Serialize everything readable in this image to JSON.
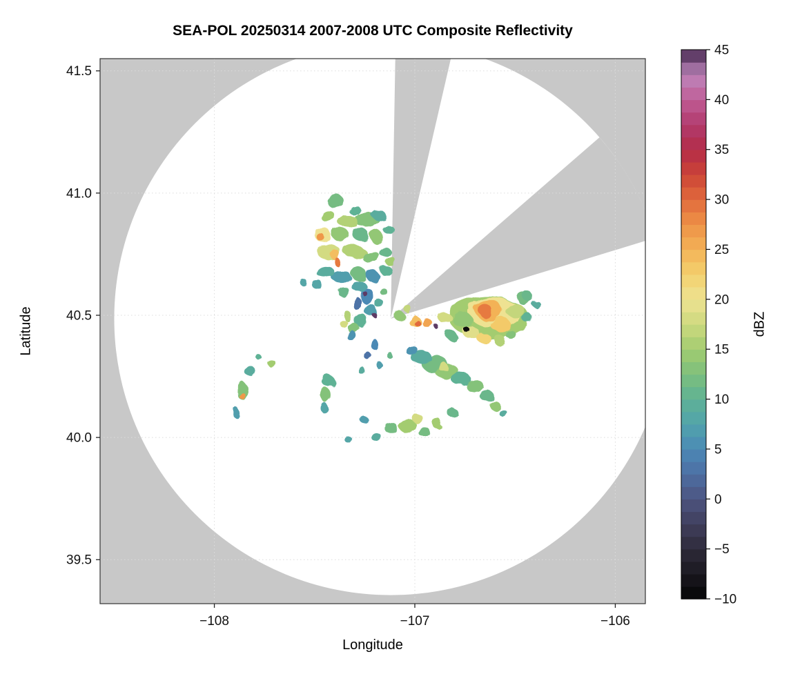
{
  "chart_data": {
    "type": "heatmap",
    "title": "SEA-POL 20250314 2007-2008 UTC Composite Reflectivity",
    "xlabel": "Longitude",
    "ylabel": "Latitude",
    "xlim": [
      -108.57,
      -105.85
    ],
    "ylim": [
      39.32,
      41.55
    ],
    "xticks": [
      -108,
      -107,
      -106
    ],
    "xtick_labels": [
      "−108",
      "−107",
      "−106"
    ],
    "yticks": [
      39.5,
      40.0,
      40.5,
      41.0,
      41.5
    ],
    "ytick_labels": [
      "39.5",
      "40.0",
      "40.5",
      "41.0",
      "41.5"
    ],
    "grid": true,
    "grid_color": "#dcdcdc",
    "outside_color": "#c8c8c8",
    "coverage_fill": "#ffffff",
    "radar": {
      "center_lon": -107.12,
      "center_lat": 40.486,
      "radius_lat_deg": 1.131
    },
    "blocked_sectors_az_from_north": [
      {
        "start_az": 1,
        "end_az": 13
      },
      {
        "start_az": 49,
        "end_az": 73
      }
    ],
    "colorbar": {
      "label": "dBZ",
      "min": -10,
      "max": 45,
      "ticks": [
        -10,
        -5,
        0,
        5,
        10,
        15,
        20,
        25,
        30,
        35,
        40,
        45
      ],
      "tick_labels": [
        "−10",
        "−5",
        "0",
        "5",
        "10",
        "15",
        "20",
        "25",
        "30",
        "35",
        "40",
        "45"
      ],
      "orientation": "vertical",
      "position": "right"
    },
    "colormap_stops": [
      [
        -10,
        "#050505"
      ],
      [
        -7.5,
        "#1a181f"
      ],
      [
        -5,
        "#2e2b3a"
      ],
      [
        -2.5,
        "#403f5c"
      ],
      [
        0,
        "#4d5480"
      ],
      [
        2.5,
        "#4d6ea3"
      ],
      [
        5,
        "#4b89b5"
      ],
      [
        7.5,
        "#52a3ab"
      ],
      [
        10,
        "#5fb295"
      ],
      [
        12.5,
        "#7cbf7d"
      ],
      [
        15,
        "#a3cc70"
      ],
      [
        17.5,
        "#ccd97e"
      ],
      [
        20,
        "#eee292"
      ],
      [
        22.5,
        "#f3d06e"
      ],
      [
        25,
        "#f3b257"
      ],
      [
        27.5,
        "#ee9247"
      ],
      [
        30,
        "#e16a3c"
      ],
      [
        32.5,
        "#cc4437"
      ],
      [
        35,
        "#b42c48"
      ],
      [
        37.5,
        "#b13a6d"
      ],
      [
        40,
        "#c05d95"
      ],
      [
        42.5,
        "#bd85bb"
      ],
      [
        45,
        "#45274f"
      ]
    ],
    "echo_columns": [
      "lon",
      "lat",
      "width_deg",
      "height_deg",
      "dbz"
    ],
    "echoes": [
      [
        -107.4,
        40.97,
        0.09,
        0.05,
        12
      ],
      [
        -107.44,
        40.91,
        0.07,
        0.05,
        15
      ],
      [
        -107.3,
        40.93,
        0.06,
        0.04,
        10
      ],
      [
        -107.24,
        40.89,
        0.12,
        0.06,
        13
      ],
      [
        -107.18,
        40.91,
        0.07,
        0.04,
        9
      ],
      [
        -107.33,
        40.88,
        0.1,
        0.05,
        16
      ],
      [
        -107.46,
        40.83,
        0.08,
        0.06,
        20
      ],
      [
        -107.47,
        40.82,
        0.04,
        0.03,
        27
      ],
      [
        -107.37,
        40.83,
        0.09,
        0.05,
        14
      ],
      [
        -107.27,
        40.83,
        0.08,
        0.05,
        11
      ],
      [
        -107.19,
        40.82,
        0.07,
        0.05,
        14
      ],
      [
        -107.13,
        40.85,
        0.05,
        0.04,
        10
      ],
      [
        -107.43,
        40.76,
        0.12,
        0.06,
        18
      ],
      [
        -107.4,
        40.75,
        0.05,
        0.04,
        24
      ],
      [
        -107.39,
        40.72,
        0.035,
        0.03,
        29
      ],
      [
        -107.3,
        40.76,
        0.11,
        0.05,
        16
      ],
      [
        -107.22,
        40.74,
        0.09,
        0.05,
        13
      ],
      [
        -107.15,
        40.76,
        0.06,
        0.04,
        11
      ],
      [
        -107.45,
        40.68,
        0.09,
        0.05,
        9
      ],
      [
        -107.37,
        40.66,
        0.1,
        0.05,
        7
      ],
      [
        -107.28,
        40.67,
        0.08,
        0.05,
        12
      ],
      [
        -107.21,
        40.66,
        0.07,
        0.04,
        6
      ],
      [
        -107.14,
        40.68,
        0.06,
        0.04,
        10
      ],
      [
        -107.12,
        40.72,
        0.05,
        0.04,
        15
      ],
      [
        -107.48,
        40.62,
        0.05,
        0.04,
        8
      ],
      [
        -107.36,
        40.6,
        0.06,
        0.04,
        11
      ],
      [
        -107.28,
        40.62,
        0.07,
        0.05,
        8
      ],
      [
        -107.24,
        40.58,
        0.06,
        0.07,
        5
      ],
      [
        -107.29,
        40.55,
        0.05,
        0.05,
        3
      ],
      [
        -107.22,
        40.52,
        0.06,
        0.05,
        7
      ],
      [
        -107.27,
        40.48,
        0.07,
        0.05,
        10
      ],
      [
        -107.31,
        40.45,
        0.06,
        0.04,
        13
      ],
      [
        -107.34,
        40.5,
        0.04,
        0.04,
        16
      ],
      [
        -107.25,
        40.59,
        0.022,
        0.02,
        44.5
      ],
      [
        -107.2,
        40.5,
        0.02,
        0.02,
        44.5
      ],
      [
        -107.32,
        40.42,
        0.05,
        0.04,
        6
      ],
      [
        -107.36,
        40.47,
        0.04,
        0.03,
        18
      ],
      [
        -107.18,
        40.55,
        0.04,
        0.04,
        9
      ],
      [
        -107.16,
        40.6,
        0.035,
        0.03,
        12
      ],
      [
        -107.08,
        40.5,
        0.05,
        0.04,
        14
      ],
      [
        -107.04,
        40.53,
        0.04,
        0.03,
        17
      ],
      [
        -107.0,
        40.475,
        0.06,
        0.045,
        24
      ],
      [
        -106.99,
        40.47,
        0.03,
        0.025,
        30
      ],
      [
        -106.94,
        40.47,
        0.05,
        0.035,
        26
      ],
      [
        -106.9,
        40.46,
        0.02,
        0.02,
        44.5
      ],
      [
        -106.85,
        40.49,
        0.07,
        0.04,
        18
      ],
      [
        -106.63,
        40.49,
        0.4,
        0.17,
        15
      ],
      [
        -106.6,
        40.51,
        0.26,
        0.12,
        20
      ],
      [
        -106.63,
        40.52,
        0.14,
        0.08,
        25
      ],
      [
        -106.65,
        40.52,
        0.07,
        0.05,
        29
      ],
      [
        -106.57,
        40.46,
        0.1,
        0.06,
        23
      ],
      [
        -106.5,
        40.52,
        0.09,
        0.06,
        17
      ],
      [
        -106.46,
        40.57,
        0.06,
        0.05,
        12
      ],
      [
        -106.44,
        40.49,
        0.05,
        0.04,
        10
      ],
      [
        -106.76,
        40.48,
        0.1,
        0.06,
        14
      ],
      [
        -106.72,
        40.43,
        0.08,
        0.05,
        19
      ],
      [
        -106.66,
        40.41,
        0.07,
        0.04,
        22
      ],
      [
        -106.58,
        40.4,
        0.06,
        0.04,
        16
      ],
      [
        -106.74,
        40.44,
        0.025,
        0.025,
        -9
      ],
      [
        -106.82,
        40.42,
        0.05,
        0.04,
        11
      ],
      [
        -106.52,
        40.42,
        0.05,
        0.035,
        13
      ],
      [
        -107.02,
        40.36,
        0.06,
        0.04,
        6
      ],
      [
        -106.97,
        40.33,
        0.1,
        0.06,
        9
      ],
      [
        -106.9,
        40.3,
        0.13,
        0.07,
        12
      ],
      [
        -106.86,
        40.29,
        0.05,
        0.035,
        18
      ],
      [
        -106.84,
        40.27,
        0.12,
        0.06,
        14
      ],
      [
        -106.77,
        40.24,
        0.1,
        0.05,
        10
      ],
      [
        -106.7,
        40.21,
        0.09,
        0.05,
        13
      ],
      [
        -106.64,
        40.17,
        0.07,
        0.045,
        11
      ],
      [
        -106.6,
        40.13,
        0.05,
        0.04,
        14
      ],
      [
        -106.56,
        40.1,
        0.04,
        0.03,
        9
      ],
      [
        -107.43,
        40.23,
        0.06,
        0.05,
        10
      ],
      [
        -107.44,
        40.17,
        0.05,
        0.06,
        13
      ],
      [
        -107.45,
        40.12,
        0.04,
        0.04,
        8
      ],
      [
        -107.12,
        40.04,
        0.06,
        0.05,
        12
      ],
      [
        -107.04,
        40.05,
        0.09,
        0.055,
        15
      ],
      [
        -106.99,
        40.08,
        0.05,
        0.04,
        18
      ],
      [
        -106.95,
        40.02,
        0.06,
        0.04,
        12
      ],
      [
        -106.88,
        40.05,
        0.05,
        0.04,
        15
      ],
      [
        -106.81,
        40.1,
        0.05,
        0.04,
        11
      ],
      [
        -107.19,
        40.0,
        0.05,
        0.035,
        9
      ],
      [
        -107.33,
        39.99,
        0.035,
        0.03,
        8
      ],
      [
        -107.25,
        40.07,
        0.04,
        0.03,
        7
      ],
      [
        -107.2,
        40.38,
        0.035,
        0.045,
        5
      ],
      [
        -107.23,
        40.33,
        0.03,
        0.035,
        3
      ],
      [
        -107.17,
        40.29,
        0.03,
        0.03,
        7
      ],
      [
        -107.26,
        40.27,
        0.035,
        0.03,
        9
      ],
      [
        -107.13,
        40.34,
        0.03,
        0.025,
        11
      ],
      [
        -107.82,
        40.27,
        0.05,
        0.045,
        9
      ],
      [
        -107.86,
        40.19,
        0.05,
        0.075,
        13
      ],
      [
        -107.86,
        40.17,
        0.028,
        0.03,
        27
      ],
      [
        -107.89,
        40.1,
        0.04,
        0.04,
        7
      ],
      [
        -107.71,
        40.3,
        0.045,
        0.025,
        15
      ],
      [
        -107.78,
        40.33,
        0.03,
        0.02,
        10
      ],
      [
        -107.55,
        40.63,
        0.035,
        0.03,
        8
      ],
      [
        -106.44,
        40.58,
        0.05,
        0.04,
        11
      ],
      [
        -106.4,
        40.55,
        0.04,
        0.03,
        9
      ]
    ]
  }
}
